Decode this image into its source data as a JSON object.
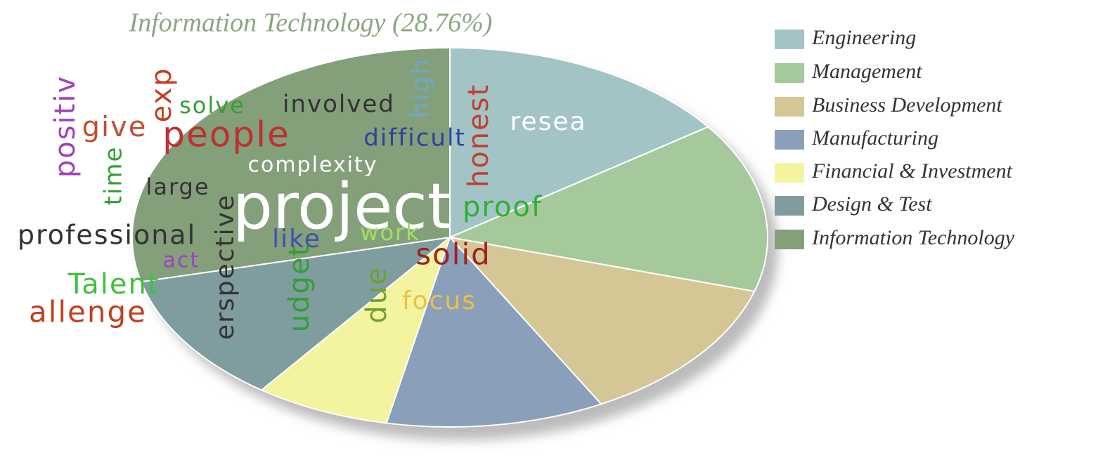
{
  "chart_data": {
    "type": "pie",
    "title": "Information Technology (28.76%)",
    "categories": [
      "Engineering",
      "Management",
      "Business Development",
      "Manufacturing",
      "Financial & Investment",
      "Design & Test",
      "Information Technology"
    ],
    "values": [
      15.1,
      14.5,
      12.5,
      11.1,
      6.9,
      11.14,
      28.76
    ],
    "colors": [
      "#a3c4c6",
      "#a6c99c",
      "#d4c795",
      "#8a9fba",
      "#f3f3a0",
      "#7f9d9e",
      "#83a07a"
    ],
    "legend": "right",
    "annotations": [
      {
        "text": "positiv",
        "color": "#a040c0"
      },
      {
        "text": "give",
        "color": "#c05030"
      },
      {
        "text": "exp",
        "color": "#c04020"
      },
      {
        "text": "solve",
        "color": "#30a030"
      },
      {
        "text": "involved",
        "color": "#333333"
      },
      {
        "text": "high",
        "color": "#70a8c0"
      },
      {
        "text": "honest",
        "color": "#c04030"
      },
      {
        "text": "resea",
        "color": "#ffffff"
      },
      {
        "text": "people",
        "color": "#c03030"
      },
      {
        "text": "difficult",
        "color": "#3040a0"
      },
      {
        "text": "complexity",
        "color": "#ffffff"
      },
      {
        "text": "time",
        "color": "#30a030"
      },
      {
        "text": "large",
        "color": "#333333"
      },
      {
        "text": "project",
        "color": "#ffffff"
      },
      {
        "text": "proof",
        "color": "#30b030"
      },
      {
        "text": "professional",
        "color": "#333333"
      },
      {
        "text": "erspective",
        "color": "#333333"
      },
      {
        "text": "like",
        "color": "#4050b0"
      },
      {
        "text": "work",
        "color": "#a0e060"
      },
      {
        "text": "solid",
        "color": "#a02020"
      },
      {
        "text": "act",
        "color": "#a040c0"
      },
      {
        "text": "Talent",
        "color": "#40c040"
      },
      {
        "text": "udget",
        "color": "#30a030"
      },
      {
        "text": "due",
        "color": "#70a030"
      },
      {
        "text": "focus",
        "color": "#f0c040"
      },
      {
        "text": "allenge",
        "color": "#c04020"
      }
    ]
  }
}
